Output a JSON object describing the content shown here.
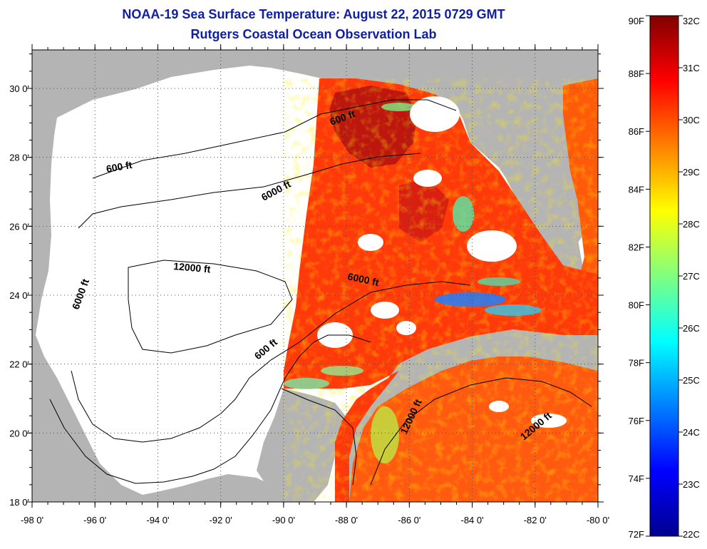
{
  "title": "NOAA-19 Sea Surface Temperature:  August 22, 2015 0729 GMT",
  "subtitle": "Rutgers Coastal Ocean Observation Lab",
  "map": {
    "lon_ticks": [
      "-98 0'",
      "-96 0'",
      "-94 0'",
      "-92 0'",
      "-90 0'",
      "-88 0'",
      "-86 0'",
      "-84 0'",
      "-82 0'",
      "-80 0'"
    ],
    "lat_ticks": [
      "30 0'",
      "28 0'",
      "26 0'",
      "24 0'",
      "22 0'",
      "20 0'",
      "18 0'"
    ],
    "contour_labels": [
      "600 ft",
      "6000 ft",
      "600 ft",
      "12000 ft",
      "6000 ft",
      "6000 ft",
      "600 ft",
      "12000 ft",
      "12000 ft"
    ],
    "colors": {
      "land": "#b4b4b4",
      "no_data": "#ffffff",
      "grid": "#505050",
      "contour": "#000000"
    }
  },
  "colorbar": {
    "f_labels": [
      "90F",
      "88F",
      "86F",
      "84F",
      "82F",
      "80F",
      "78F",
      "76F",
      "74F",
      "72F"
    ],
    "c_labels": [
      "32C",
      "31C",
      "30C",
      "29C",
      "28C",
      "27C",
      "26C",
      "25C",
      "24C",
      "23C",
      "22C"
    ],
    "colors": [
      "#00008f",
      "#0000ff",
      "#0080ff",
      "#00ffff",
      "#80ff80",
      "#ffff00",
      "#ff8000",
      "#ff0000",
      "#800000"
    ]
  }
}
